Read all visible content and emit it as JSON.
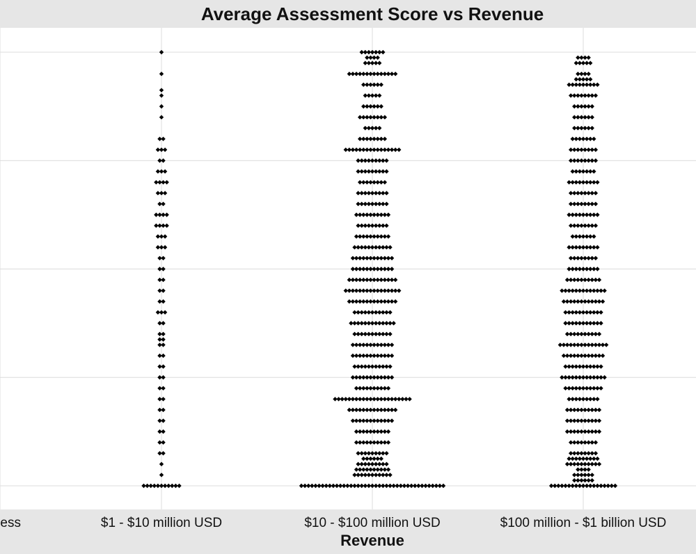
{
  "chart_data": {
    "type": "scatter",
    "subtype": "beeswarm-dotplot",
    "title": "Average Assessment Score vs Revenue",
    "xlabel": "Revenue",
    "ylabel": "",
    "categories": [
      "ess",
      "$1 - $10 million USD",
      "$10 - $100 million USD",
      "$100 million - $1 billion USD"
    ],
    "ylim": [
      0,
      4
    ],
    "y_gridlines": [
      0,
      1,
      2,
      3,
      4
    ],
    "grid": true,
    "point_color": "#000000",
    "series": [
      {
        "category": "$1 - $10 million USD",
        "stacks": [
          {
            "y": 0.0,
            "n": 11
          },
          {
            "y": 0.1,
            "n": 1
          },
          {
            "y": 0.2,
            "n": 1
          },
          {
            "y": 0.3,
            "n": 2
          },
          {
            "y": 0.4,
            "n": 2
          },
          {
            "y": 0.5,
            "n": 2
          },
          {
            "y": 0.6,
            "n": 2
          },
          {
            "y": 0.7,
            "n": 2
          },
          {
            "y": 0.8,
            "n": 2
          },
          {
            "y": 0.9,
            "n": 2
          },
          {
            "y": 1.0,
            "n": 2
          },
          {
            "y": 1.1,
            "n": 2
          },
          {
            "y": 1.2,
            "n": 2
          },
          {
            "y": 1.3,
            "n": 2
          },
          {
            "y": 1.35,
            "n": 2
          },
          {
            "y": 1.4,
            "n": 2
          },
          {
            "y": 1.5,
            "n": 2
          },
          {
            "y": 1.6,
            "n": 3
          },
          {
            "y": 1.7,
            "n": 2
          },
          {
            "y": 1.8,
            "n": 2
          },
          {
            "y": 1.9,
            "n": 2
          },
          {
            "y": 2.0,
            "n": 2
          },
          {
            "y": 2.1,
            "n": 2
          },
          {
            "y": 2.2,
            "n": 3
          },
          {
            "y": 2.3,
            "n": 3
          },
          {
            "y": 2.4,
            "n": 4
          },
          {
            "y": 2.5,
            "n": 4
          },
          {
            "y": 2.6,
            "n": 2
          },
          {
            "y": 2.7,
            "n": 3
          },
          {
            "y": 2.8,
            "n": 4
          },
          {
            "y": 2.9,
            "n": 3
          },
          {
            "y": 3.0,
            "n": 2
          },
          {
            "y": 3.1,
            "n": 3
          },
          {
            "y": 3.2,
            "n": 2
          },
          {
            "y": 3.4,
            "n": 1
          },
          {
            "y": 3.5,
            "n": 1
          },
          {
            "y": 3.6,
            "n": 1
          },
          {
            "y": 3.65,
            "n": 1
          },
          {
            "y": 3.8,
            "n": 1
          },
          {
            "y": 4.0,
            "n": 1
          }
        ]
      },
      {
        "category": "$10 - $100 million USD",
        "stacks": [
          {
            "y": 0.0,
            "n": 41
          },
          {
            "y": 0.1,
            "n": 11
          },
          {
            "y": 0.15,
            "n": 10
          },
          {
            "y": 0.2,
            "n": 9
          },
          {
            "y": 0.25,
            "n": 6
          },
          {
            "y": 0.3,
            "n": 9
          },
          {
            "y": 0.4,
            "n": 10
          },
          {
            "y": 0.5,
            "n": 10
          },
          {
            "y": 0.6,
            "n": 12
          },
          {
            "y": 0.7,
            "n": 14
          },
          {
            "y": 0.8,
            "n": 22
          },
          {
            "y": 0.9,
            "n": 10
          },
          {
            "y": 1.0,
            "n": 12
          },
          {
            "y": 1.1,
            "n": 11
          },
          {
            "y": 1.2,
            "n": 12
          },
          {
            "y": 1.3,
            "n": 12
          },
          {
            "y": 1.4,
            "n": 11
          },
          {
            "y": 1.5,
            "n": 13
          },
          {
            "y": 1.6,
            "n": 11
          },
          {
            "y": 1.7,
            "n": 14
          },
          {
            "y": 1.8,
            "n": 16
          },
          {
            "y": 1.9,
            "n": 14
          },
          {
            "y": 2.0,
            "n": 12
          },
          {
            "y": 2.1,
            "n": 12
          },
          {
            "y": 2.2,
            "n": 11
          },
          {
            "y": 2.3,
            "n": 10
          },
          {
            "y": 2.4,
            "n": 9
          },
          {
            "y": 2.5,
            "n": 10
          },
          {
            "y": 2.6,
            "n": 9
          },
          {
            "y": 2.7,
            "n": 9
          },
          {
            "y": 2.8,
            "n": 8
          },
          {
            "y": 2.9,
            "n": 9
          },
          {
            "y": 3.0,
            "n": 9
          },
          {
            "y": 3.1,
            "n": 16
          },
          {
            "y": 3.2,
            "n": 8
          },
          {
            "y": 3.3,
            "n": 5
          },
          {
            "y": 3.4,
            "n": 8
          },
          {
            "y": 3.5,
            "n": 6
          },
          {
            "y": 3.6,
            "n": 5
          },
          {
            "y": 3.7,
            "n": 6
          },
          {
            "y": 3.8,
            "n": 14
          },
          {
            "y": 3.9,
            "n": 5
          },
          {
            "y": 3.95,
            "n": 4
          },
          {
            "y": 4.0,
            "n": 7
          }
        ]
      },
      {
        "category": "$100 million - $1 billion USD",
        "stacks": [
          {
            "y": 0.0,
            "n": 19
          },
          {
            "y": 0.05,
            "n": 6
          },
          {
            "y": 0.1,
            "n": 6
          },
          {
            "y": 0.15,
            "n": 4
          },
          {
            "y": 0.2,
            "n": 10
          },
          {
            "y": 0.25,
            "n": 9
          },
          {
            "y": 0.3,
            "n": 8
          },
          {
            "y": 0.4,
            "n": 8
          },
          {
            "y": 0.5,
            "n": 10
          },
          {
            "y": 0.6,
            "n": 10
          },
          {
            "y": 0.7,
            "n": 10
          },
          {
            "y": 0.8,
            "n": 9
          },
          {
            "y": 0.9,
            "n": 11
          },
          {
            "y": 1.0,
            "n": 13
          },
          {
            "y": 1.1,
            "n": 11
          },
          {
            "y": 1.2,
            "n": 12
          },
          {
            "y": 1.3,
            "n": 14
          },
          {
            "y": 1.4,
            "n": 10
          },
          {
            "y": 1.5,
            "n": 11
          },
          {
            "y": 1.6,
            "n": 11
          },
          {
            "y": 1.7,
            "n": 12
          },
          {
            "y": 1.8,
            "n": 13
          },
          {
            "y": 1.9,
            "n": 10
          },
          {
            "y": 2.0,
            "n": 9
          },
          {
            "y": 2.1,
            "n": 8
          },
          {
            "y": 2.2,
            "n": 9
          },
          {
            "y": 2.3,
            "n": 7
          },
          {
            "y": 2.4,
            "n": 8
          },
          {
            "y": 2.5,
            "n": 9
          },
          {
            "y": 2.6,
            "n": 8
          },
          {
            "y": 2.7,
            "n": 8
          },
          {
            "y": 2.8,
            "n": 9
          },
          {
            "y": 2.9,
            "n": 7
          },
          {
            "y": 3.0,
            "n": 8
          },
          {
            "y": 3.1,
            "n": 8
          },
          {
            "y": 3.2,
            "n": 7
          },
          {
            "y": 3.3,
            "n": 6
          },
          {
            "y": 3.4,
            "n": 6
          },
          {
            "y": 3.5,
            "n": 6
          },
          {
            "y": 3.6,
            "n": 8
          },
          {
            "y": 3.7,
            "n": 9
          },
          {
            "y": 3.75,
            "n": 5
          },
          {
            "y": 3.8,
            "n": 4
          },
          {
            "y": 3.9,
            "n": 5
          },
          {
            "y": 3.95,
            "n": 4
          }
        ]
      }
    ]
  }
}
